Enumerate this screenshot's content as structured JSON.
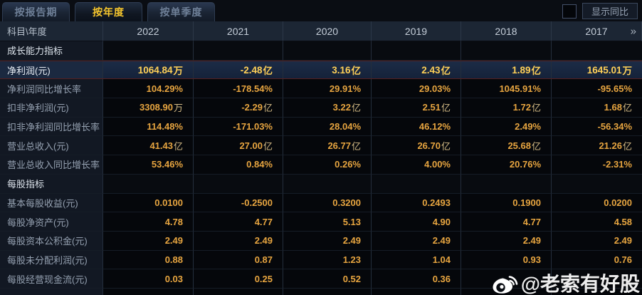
{
  "tabs": [
    {
      "name": "tab-by-report-period",
      "label": "按报告期",
      "active": false
    },
    {
      "name": "tab-by-year",
      "label": "按年度",
      "active": true
    },
    {
      "name": "tab-by-quarter",
      "label": "按单季度",
      "active": false
    }
  ],
  "controls": {
    "show_yoy_label": "显示同比",
    "checkbox_checked": false
  },
  "table": {
    "corner_label": "科目\\年度",
    "years": [
      "2022",
      "2021",
      "2020",
      "2019",
      "2018",
      "2017"
    ],
    "more_years_glyph": "»",
    "rows": [
      {
        "type": "section",
        "label": "成长能力指标",
        "values": [
          "",
          "",
          "",
          "",
          "",
          ""
        ]
      },
      {
        "type": "data",
        "highlight": true,
        "label": "净利润(元)",
        "values": [
          "1064.84万",
          "-2.48亿",
          "3.16亿",
          "2.43亿",
          "1.89亿",
          "1645.01万"
        ]
      },
      {
        "type": "data",
        "label": "净利润同比增长率",
        "values": [
          "104.29%",
          "-178.54%",
          "29.91%",
          "29.03%",
          "1045.91%",
          "-95.65%"
        ]
      },
      {
        "type": "data",
        "label": "扣非净利润(元)",
        "values": [
          "3308.90万",
          "-2.29亿",
          "3.22亿",
          "2.51亿",
          "1.72亿",
          "1.68亿"
        ]
      },
      {
        "type": "data",
        "label": "扣非净利润同比增长率",
        "values": [
          "114.48%",
          "-171.03%",
          "28.04%",
          "46.12%",
          "2.49%",
          "-56.34%"
        ]
      },
      {
        "type": "data",
        "label": "营业总收入(元)",
        "values": [
          "41.43亿",
          "27.00亿",
          "26.77亿",
          "26.70亿",
          "25.68亿",
          "21.26亿"
        ]
      },
      {
        "type": "data",
        "label": "营业总收入同比增长率",
        "values": [
          "53.46%",
          "0.84%",
          "0.26%",
          "4.00%",
          "20.76%",
          "-2.31%"
        ]
      },
      {
        "type": "section",
        "label": "每股指标",
        "values": [
          "",
          "",
          "",
          "",
          "",
          ""
        ]
      },
      {
        "type": "data",
        "label": "基本每股收益(元)",
        "values": [
          "0.0100",
          "-0.2500",
          "0.3200",
          "0.2493",
          "0.1900",
          "0.0200"
        ]
      },
      {
        "type": "data",
        "label": "每股净资产(元)",
        "values": [
          "4.78",
          "4.77",
          "5.13",
          "4.90",
          "4.77",
          "4.58"
        ]
      },
      {
        "type": "data",
        "label": "每股资本公积金(元)",
        "values": [
          "2.49",
          "2.49",
          "2.49",
          "2.49",
          "2.49",
          "2.49"
        ]
      },
      {
        "type": "data",
        "label": "每股未分配利润(元)",
        "values": [
          "0.88",
          "0.87",
          "1.23",
          "1.04",
          "0.93",
          "0.76"
        ]
      },
      {
        "type": "data",
        "label": "每股经营现金流(元)",
        "values": [
          "0.03",
          "0.25",
          "0.52",
          "0.36",
          "",
          ""
        ]
      }
    ]
  },
  "watermark": {
    "icon": "weibo-icon",
    "text": "@老索有好股"
  },
  "colors": {
    "page_bg": "#0a0d13",
    "header_bg": "#1c2634",
    "cell_bg": "#05070b",
    "label_col_bg": "#121823",
    "value_gold": "#e7a540",
    "highlight_value_gold": "#ffd158",
    "highlight_row_bg": "#1b2940",
    "highlight_border_red": "#55201f",
    "active_tab_text": "#f6c62d"
  }
}
